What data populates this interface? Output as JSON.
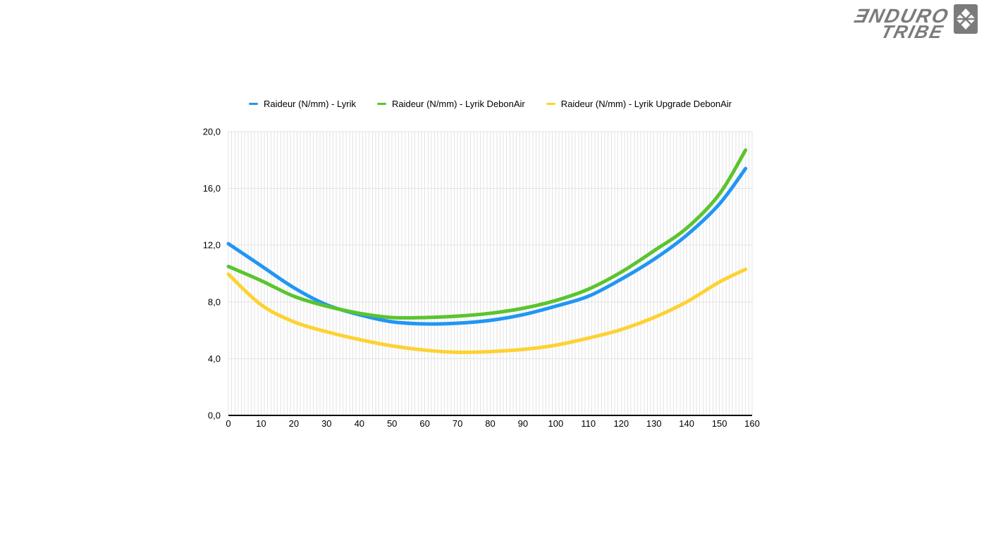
{
  "logo": {
    "line1": "ƎNDURO",
    "line2": "TRIBE",
    "color": "#7b7b7b"
  },
  "chart_data": {
    "type": "line",
    "x": [
      0,
      10,
      20,
      30,
      40,
      50,
      60,
      70,
      80,
      90,
      100,
      110,
      120,
      130,
      140,
      150,
      158
    ],
    "series": [
      {
        "key": "lyrik",
        "name": "Raideur (N/mm) - Lyrik",
        "color": "#2196f3",
        "values": [
          12.1,
          10.55,
          9.0,
          7.8,
          7.1,
          6.6,
          6.45,
          6.5,
          6.7,
          7.1,
          7.7,
          8.4,
          9.6,
          11.0,
          12.7,
          14.9,
          17.4
        ]
      },
      {
        "key": "lyrik-debonair",
        "name": "Raideur (N/mm) - Lyrik DebonAir",
        "color": "#5bc42e",
        "values": [
          10.5,
          9.5,
          8.4,
          7.7,
          7.2,
          6.9,
          6.9,
          7.0,
          7.2,
          7.55,
          8.1,
          8.9,
          10.1,
          11.6,
          13.2,
          15.6,
          18.7
        ]
      },
      {
        "key": "lyrik-upgrade-debonair",
        "name": "Raideur (N/mm) - Lyrik Upgrade DebonAir",
        "color": "#fdd232",
        "values": [
          9.95,
          7.8,
          6.6,
          5.9,
          5.35,
          4.9,
          4.6,
          4.45,
          4.5,
          4.65,
          4.95,
          5.45,
          6.05,
          6.9,
          8.0,
          9.4,
          10.3
        ]
      }
    ],
    "title": "",
    "xlabel": "",
    "ylabel": "",
    "xlim": [
      0,
      160
    ],
    "ylim": [
      0,
      20
    ],
    "x_tick_labels": [
      "0",
      "10",
      "20",
      "30",
      "40",
      "50",
      "60",
      "70",
      "80",
      "90",
      "100",
      "110",
      "120",
      "130",
      "140",
      "150",
      "160"
    ],
    "x_tick_values": [
      0,
      10,
      20,
      30,
      40,
      50,
      60,
      70,
      80,
      90,
      100,
      110,
      120,
      130,
      140,
      150,
      160
    ],
    "y_tick_labels": [
      "0,0",
      "4,0",
      "8,0",
      "12,0",
      "16,0",
      "20,0"
    ],
    "y_tick_values": [
      0,
      4,
      8,
      12,
      16,
      20
    ],
    "grid": {
      "vertical_minor_step": 1,
      "horizontal_step": 4,
      "color": "#e3e3e3",
      "axis_color": "#000000"
    },
    "legend_position": "top",
    "line_width": 5
  }
}
